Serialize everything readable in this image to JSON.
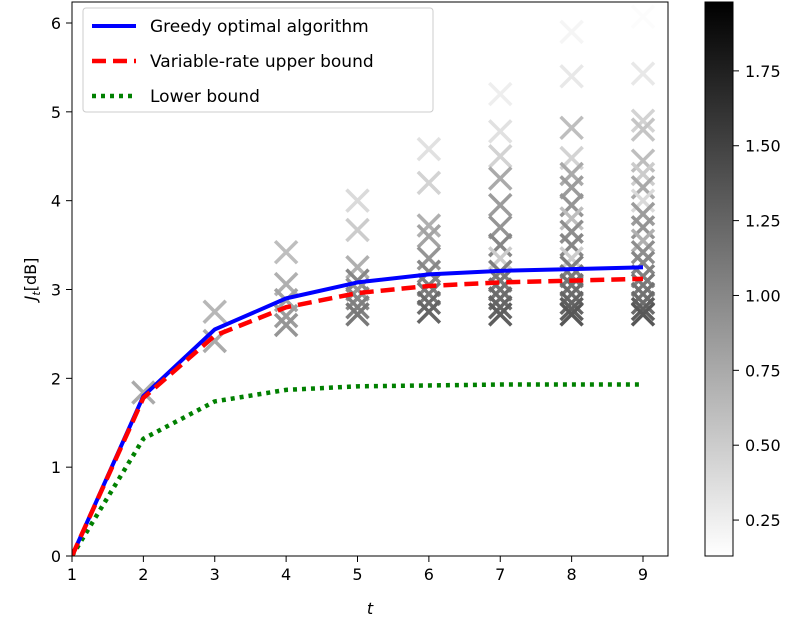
{
  "chart_data": {
    "type": "line",
    "xlabel": "t",
    "ylabel_main": "J",
    "ylabel_sub": "t",
    "ylabel_unit": "[dB]",
    "xlim": [
      1,
      9.3
    ],
    "ylim": [
      0,
      6.25
    ],
    "x_ticks": [
      1,
      2,
      3,
      4,
      5,
      6,
      7,
      8,
      9
    ],
    "y_ticks": [
      0,
      1,
      2,
      3,
      4,
      5,
      6
    ],
    "grid": false,
    "legend_position": "top-left",
    "series": [
      {
        "name": "Greedy optimal algorithm",
        "color": "#0000ff",
        "style": "solid",
        "x": [
          1,
          2,
          3,
          4,
          5,
          6,
          7,
          8,
          9
        ],
        "y": [
          0.0,
          1.8,
          2.55,
          2.9,
          3.08,
          3.17,
          3.21,
          3.23,
          3.25
        ]
      },
      {
        "name": "Variable-rate upper bound",
        "color": "#ff0000",
        "style": "dashed",
        "x": [
          1,
          2,
          3,
          4,
          5,
          6,
          7,
          8,
          9
        ],
        "y": [
          0.0,
          1.78,
          2.48,
          2.8,
          2.96,
          3.04,
          3.08,
          3.1,
          3.12
        ]
      },
      {
        "name": "Lower bound",
        "color": "#008000",
        "style": "dotted",
        "x": [
          1,
          2,
          3,
          4,
          5,
          6,
          7,
          8,
          9
        ],
        "y": [
          0.0,
          1.32,
          1.74,
          1.87,
          1.91,
          1.92,
          1.93,
          1.93,
          1.93
        ]
      }
    ],
    "scatter": {
      "marker": "x",
      "colormap": "greys",
      "points": [
        {
          "x": 2,
          "y": 1.84,
          "c": 0.75
        },
        {
          "x": 3,
          "y": 2.75,
          "c": 0.65
        },
        {
          "x": 3,
          "y": 2.42,
          "c": 0.75
        },
        {
          "x": 4,
          "y": 3.42,
          "c": 0.6
        },
        {
          "x": 4,
          "y": 3.06,
          "c": 0.7
        },
        {
          "x": 4,
          "y": 2.88,
          "c": 0.8
        },
        {
          "x": 4,
          "y": 2.7,
          "c": 0.85
        },
        {
          "x": 4,
          "y": 2.6,
          "c": 0.9
        },
        {
          "x": 5,
          "y": 4.0,
          "c": 0.4
        },
        {
          "x": 5,
          "y": 3.67,
          "c": 0.5
        },
        {
          "x": 5,
          "y": 3.25,
          "c": 0.7
        },
        {
          "x": 5,
          "y": 3.1,
          "c": 1.0
        },
        {
          "x": 5,
          "y": 3.0,
          "c": 0.9
        },
        {
          "x": 5,
          "y": 2.9,
          "c": 1.0
        },
        {
          "x": 5,
          "y": 2.8,
          "c": 1.05
        },
        {
          "x": 5,
          "y": 2.72,
          "c": 1.1
        },
        {
          "x": 6,
          "y": 4.58,
          "c": 0.35
        },
        {
          "x": 6,
          "y": 4.2,
          "c": 0.45
        },
        {
          "x": 6,
          "y": 3.72,
          "c": 0.7
        },
        {
          "x": 6,
          "y": 3.6,
          "c": 0.8
        },
        {
          "x": 6,
          "y": 3.35,
          "c": 0.9
        },
        {
          "x": 6,
          "y": 3.2,
          "c": 1.0
        },
        {
          "x": 6,
          "y": 3.05,
          "c": 1.05
        },
        {
          "x": 6,
          "y": 2.95,
          "c": 1.1
        },
        {
          "x": 6,
          "y": 2.85,
          "c": 1.2
        },
        {
          "x": 6,
          "y": 2.75,
          "c": 1.25
        },
        {
          "x": 7,
          "y": 5.2,
          "c": 0.25
        },
        {
          "x": 7,
          "y": 4.78,
          "c": 0.35
        },
        {
          "x": 7,
          "y": 4.5,
          "c": 0.45
        },
        {
          "x": 7,
          "y": 4.25,
          "c": 0.75
        },
        {
          "x": 7,
          "y": 3.95,
          "c": 0.85
        },
        {
          "x": 7,
          "y": 3.7,
          "c": 0.9
        },
        {
          "x": 7,
          "y": 3.5,
          "c": 1.0
        },
        {
          "x": 7,
          "y": 3.35,
          "c": 0.5
        },
        {
          "x": 7,
          "y": 3.2,
          "c": 1.05
        },
        {
          "x": 7,
          "y": 3.1,
          "c": 1.1
        },
        {
          "x": 7,
          "y": 3.0,
          "c": 1.15
        },
        {
          "x": 7,
          "y": 2.9,
          "c": 1.2
        },
        {
          "x": 7,
          "y": 2.8,
          "c": 1.25
        },
        {
          "x": 7,
          "y": 2.72,
          "c": 1.3
        },
        {
          "x": 8,
          "y": 5.9,
          "c": 0.2
        },
        {
          "x": 8,
          "y": 5.4,
          "c": 0.3
        },
        {
          "x": 8,
          "y": 4.82,
          "c": 0.6
        },
        {
          "x": 8,
          "y": 4.48,
          "c": 0.45
        },
        {
          "x": 8,
          "y": 4.3,
          "c": 0.75
        },
        {
          "x": 8,
          "y": 4.15,
          "c": 0.85
        },
        {
          "x": 8,
          "y": 3.95,
          "c": 0.9
        },
        {
          "x": 8,
          "y": 3.8,
          "c": 0.6
        },
        {
          "x": 8,
          "y": 3.65,
          "c": 0.95
        },
        {
          "x": 8,
          "y": 3.5,
          "c": 1.0
        },
        {
          "x": 8,
          "y": 3.35,
          "c": 0.5
        },
        {
          "x": 8,
          "y": 3.25,
          "c": 1.05
        },
        {
          "x": 8,
          "y": 3.15,
          "c": 1.1
        },
        {
          "x": 8,
          "y": 3.05,
          "c": 1.15
        },
        {
          "x": 8,
          "y": 2.95,
          "c": 1.2
        },
        {
          "x": 8,
          "y": 2.85,
          "c": 1.25
        },
        {
          "x": 8,
          "y": 2.78,
          "c": 1.3
        },
        {
          "x": 8,
          "y": 2.72,
          "c": 1.35
        },
        {
          "x": 9,
          "y": 6.07,
          "c": 0.15
        },
        {
          "x": 9,
          "y": 5.43,
          "c": 0.3
        },
        {
          "x": 9,
          "y": 4.9,
          "c": 0.45
        },
        {
          "x": 9,
          "y": 4.8,
          "c": 0.55
        },
        {
          "x": 9,
          "y": 4.45,
          "c": 0.6
        },
        {
          "x": 9,
          "y": 4.3,
          "c": 0.5
        },
        {
          "x": 9,
          "y": 4.15,
          "c": 0.75
        },
        {
          "x": 9,
          "y": 4.0,
          "c": 0.4
        },
        {
          "x": 9,
          "y": 3.85,
          "c": 0.85
        },
        {
          "x": 9,
          "y": 3.7,
          "c": 0.9
        },
        {
          "x": 9,
          "y": 3.55,
          "c": 0.7
        },
        {
          "x": 9,
          "y": 3.42,
          "c": 0.95
        },
        {
          "x": 9,
          "y": 3.3,
          "c": 1.0
        },
        {
          "x": 9,
          "y": 3.15,
          "c": 1.05
        },
        {
          "x": 9,
          "y": 3.05,
          "c": 1.1
        },
        {
          "x": 9,
          "y": 2.95,
          "c": 1.15
        },
        {
          "x": 9,
          "y": 2.85,
          "c": 1.2
        },
        {
          "x": 9,
          "y": 2.78,
          "c": 1.3
        },
        {
          "x": 9,
          "y": 2.72,
          "c": 1.35
        }
      ]
    },
    "colorbar": {
      "min": 0.13,
      "max": 1.98,
      "ticks": [
        0.25,
        0.5,
        0.75,
        1.0,
        1.25,
        1.5,
        1.75
      ],
      "tick_labels": [
        "0.25",
        "0.50",
        "0.75",
        "1.00",
        "1.25",
        "1.50",
        "1.75"
      ]
    }
  }
}
